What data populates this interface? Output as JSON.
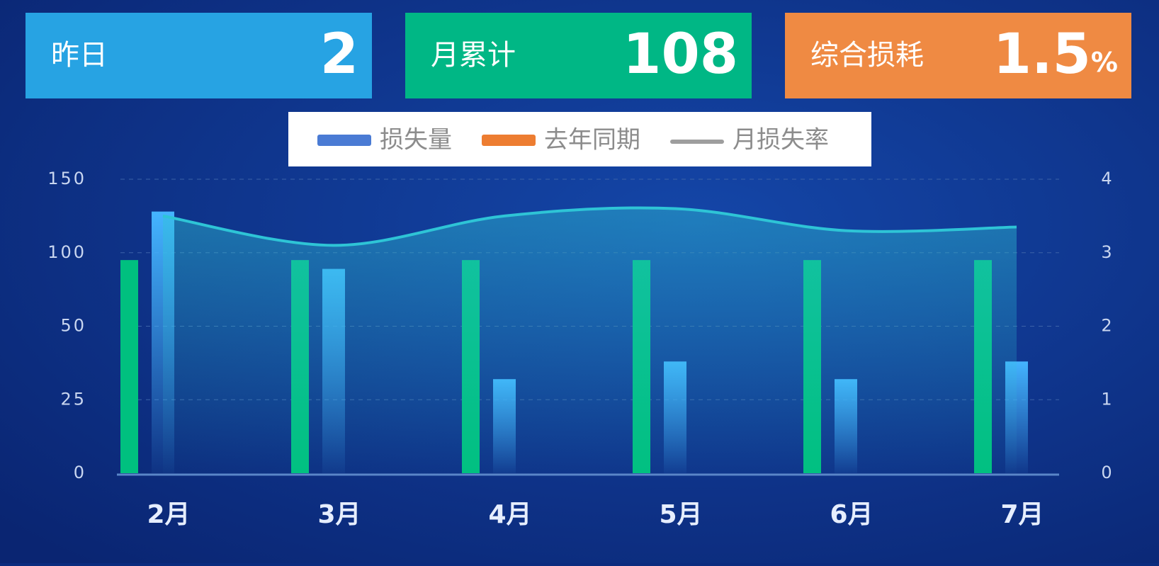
{
  "kpis": [
    {
      "label": "昨日",
      "value": 2,
      "color": "#27a3e3"
    },
    {
      "label": "月累计",
      "value": 108,
      "color": "#00b785"
    },
    {
      "label": "综合损耗",
      "value": 1.5,
      "unit": "%",
      "color": "#ef8a43"
    }
  ],
  "chart_data": {
    "type": "bar-line",
    "categories": [
      "2月",
      "3月",
      "4月",
      "5月",
      "6月",
      "7月"
    ],
    "series": [
      {
        "name": "去年同期",
        "type": "bar",
        "color": "#00c07f",
        "legend_color": "#ed7d31",
        "values": [
          95,
          95,
          95,
          95,
          95,
          95
        ]
      },
      {
        "name": "损失量",
        "type": "bar",
        "color": "#3fa9f5",
        "legend_color": "#4a7bd4",
        "values": [
          128,
          89,
          32,
          38,
          32,
          38
        ]
      },
      {
        "name": "月损失率",
        "type": "line",
        "axis": "y2",
        "color": "#2ec4d6",
        "legend_color": "#9e9e9e",
        "values": [
          3.5,
          3.1,
          3.5,
          3.6,
          3.3,
          3.35
        ]
      }
    ],
    "legend_order": [
      1,
      0,
      2
    ],
    "ylim": [
      0,
      150
    ],
    "yticks": [
      0,
      25,
      50,
      100,
      150
    ],
    "y2lim": [
      0,
      4
    ],
    "y2ticks": [
      0,
      1,
      2,
      3,
      4
    ],
    "grid": true
  }
}
